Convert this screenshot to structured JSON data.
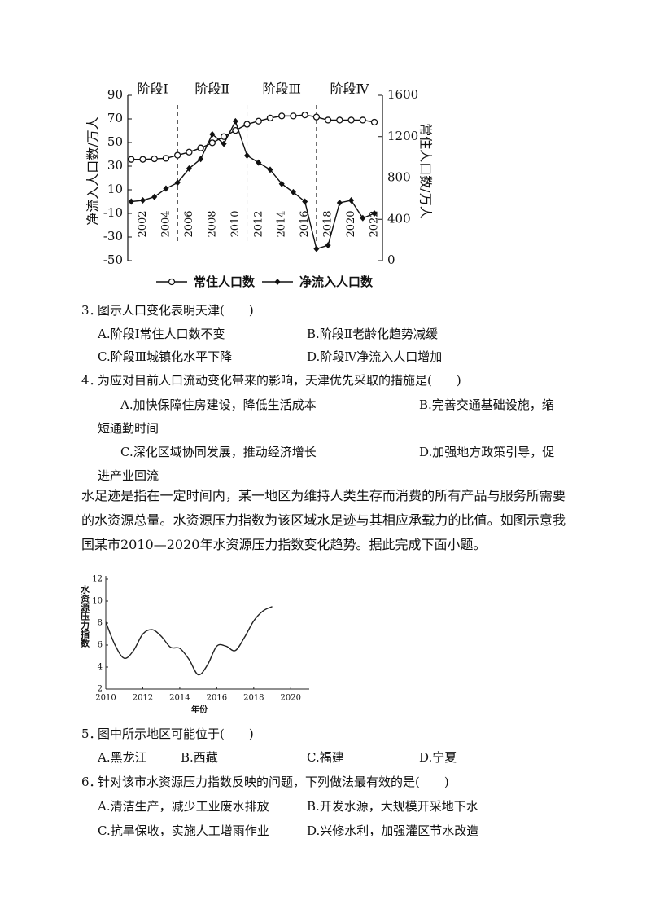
{
  "chart_data": [
    {
      "type": "line",
      "x": [
        2001,
        2002,
        2003,
        2004,
        2005,
        2006,
        2007,
        2008,
        2009,
        2010,
        2011,
        2012,
        2013,
        2014,
        2015,
        2016,
        2017,
        2018,
        2019,
        2020,
        2021,
        2022
      ],
      "xlim": [
        2000.7,
        2022.7
      ],
      "xticks": [
        2002,
        2004,
        2006,
        2008,
        2010,
        2012,
        2014,
        2016,
        2018,
        2020,
        2022
      ],
      "ylim": [
        -50,
        90
      ],
      "yticks": [
        -50,
        -30,
        -10,
        10,
        30,
        50,
        70,
        90
      ],
      "y2lim": [
        0,
        1600
      ],
      "y2ticks": [
        0,
        400,
        800,
        1200,
        1600
      ],
      "y_label": "净流入人口数/万人",
      "y2_label": "常住人口数/万人",
      "stages": [
        "阶段Ⅰ",
        "阶段Ⅱ",
        "阶段Ⅲ",
        "阶段Ⅳ"
      ],
      "stage_boundaries": [
        2005,
        2011,
        2017
      ],
      "series": [
        {
          "name": "常住人口数",
          "axis": "y2",
          "marker": "circle",
          "color": "#111",
          "values": [
            980,
            980,
            985,
            990,
            1020,
            1050,
            1090,
            1140,
            1200,
            1260,
            1320,
            1350,
            1380,
            1400,
            1400,
            1410,
            1390,
            1360,
            1360,
            1360,
            1360,
            1340
          ]
        },
        {
          "name": "净流入人口数",
          "marker": "diamond",
          "color": "#111",
          "values": [
            0,
            1,
            4,
            11,
            16,
            28,
            36,
            57,
            49,
            68,
            39,
            33,
            27,
            15,
            8,
            0,
            -40,
            -37,
            -1,
            1,
            -14,
            -10
          ]
        }
      ],
      "legend": "bottom"
    },
    {
      "type": "line",
      "x": [
        2010,
        2010.5,
        2011,
        2011.5,
        2012,
        2012.5,
        2013,
        2013.5,
        2014,
        2014.5,
        2015,
        2015.5,
        2016,
        2016.5,
        2017,
        2017.5,
        2018,
        2018.5,
        2019
      ],
      "values": [
        8.1,
        6.0,
        4.8,
        5.5,
        7.0,
        7.4,
        6.8,
        5.8,
        5.7,
        4.7,
        3.3,
        4.2,
        5.9,
        5.9,
        5.5,
        6.7,
        8.2,
        9.1,
        9.5
      ],
      "color": "#222",
      "xlim": [
        2010,
        2021
      ],
      "xticks": [
        2010,
        2012,
        2014,
        2016,
        2018,
        2020
      ],
      "ylim": [
        2,
        12
      ],
      "yticks": [
        2,
        4,
        6,
        8,
        10,
        12
      ],
      "x_label": "年份",
      "y_label": "水资源压力指数"
    }
  ],
  "document": {
    "questions": [
      {
        "number": "3．",
        "stem": "图示人口变化表明天津(　　)",
        "options": [
          "A.阶段Ⅰ常住人口数不变",
          "B.阶段Ⅱ老龄化趋势减缓",
          "C.阶段Ⅲ城镇化水平下降",
          "D.阶段Ⅳ净流入人口增加"
        ]
      },
      {
        "number": "4．",
        "stem": "为应对目前人口流动变化带来的影响，天津优先采取的措施是(　　)",
        "options": [
          "A.加快保障住房建设，降低生活成本",
          "B.完善交通基础设施，缩短通勤时间",
          "C.深化区域协同发展，推动经济增长",
          "D.加强地方政策引导，促进产业回流"
        ]
      },
      {
        "number": "5．",
        "stem": "图中所示地区可能位于(　　)",
        "options": [
          "A.黑龙江",
          "B.西藏",
          "C.福建",
          "D.宁夏"
        ]
      },
      {
        "number": "6．",
        "stem": "针对该市水资源压力指数反映的问题，下列做法最有效的是(　　)",
        "options": [
          "A.清洁生产，减少工业废水排放",
          "B.开发水源，大规模开采地下水",
          "C.抗旱保收，实施人工增雨作业",
          "D.兴修水利，加强灌区节水改造"
        ]
      }
    ],
    "passage": "水足迹是指在一定时间内，某一地区为维持人类生存而消费的所有产品与服务所需要的水资源总量。水资源压力指数为该区域水足迹与其相应承载力的比值。如图示意我国某市2010—2020年水资源压力指数变化趋势。据此完成下面小题。"
  }
}
